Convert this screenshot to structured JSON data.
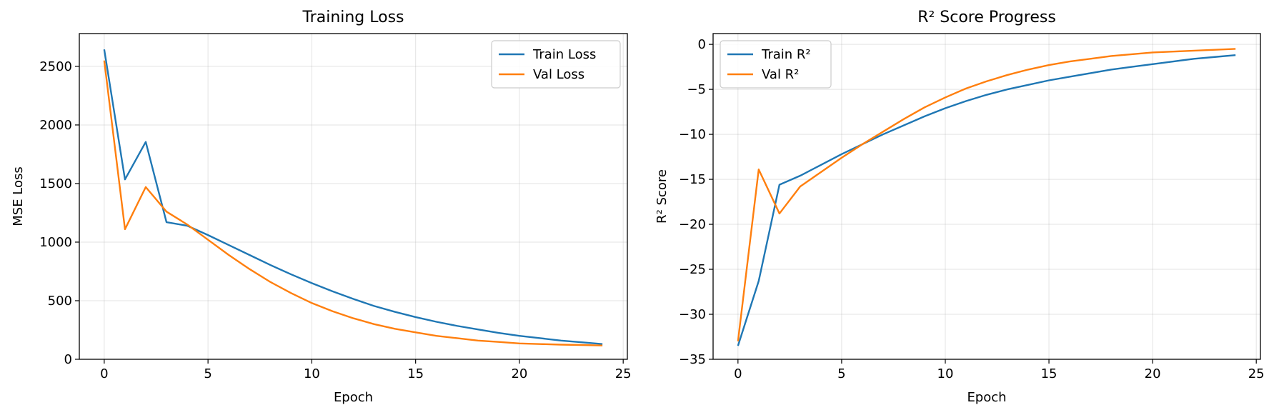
{
  "chart_data": [
    {
      "type": "line",
      "title": "Training Loss",
      "xlabel": "Epoch",
      "ylabel": "MSE Loss",
      "xlim": [
        -1.2,
        25.2
      ],
      "ylim": [
        0,
        2780
      ],
      "xticks": [
        0,
        5,
        10,
        15,
        20,
        25
      ],
      "yticks": [
        0,
        500,
        1000,
        1500,
        2000,
        2500
      ],
      "grid": true,
      "legend_position": "top-right",
      "x": [
        0,
        1,
        2,
        3,
        4,
        5,
        6,
        7,
        8,
        9,
        10,
        11,
        12,
        13,
        14,
        15,
        16,
        17,
        18,
        19,
        20,
        21,
        22,
        23,
        24
      ],
      "series": [
        {
          "name": "Train Loss",
          "color": "#1f77b4",
          "values": [
            2645,
            1535,
            1855,
            1170,
            1140,
            1060,
            975,
            890,
            805,
            725,
            650,
            580,
            515,
            455,
            405,
            360,
            320,
            285,
            255,
            225,
            200,
            180,
            160,
            145,
            130
          ]
        },
        {
          "name": "Val Loss",
          "color": "#ff7f0e",
          "values": [
            2550,
            1110,
            1470,
            1260,
            1150,
            1020,
            890,
            770,
            660,
            565,
            480,
            410,
            350,
            300,
            260,
            230,
            200,
            180,
            160,
            148,
            135,
            130,
            125,
            122,
            118
          ]
        }
      ]
    },
    {
      "type": "line",
      "title": "R² Score Progress",
      "xlabel": "Epoch",
      "ylabel": "R² Score",
      "xlim": [
        -1.2,
        25.2
      ],
      "ylim": [
        -35,
        1.2
      ],
      "xticks": [
        0,
        5,
        10,
        15,
        20,
        25
      ],
      "yticks": [
        -35,
        -30,
        -25,
        -20,
        -15,
        -10,
        -5,
        0
      ],
      "grid": true,
      "legend_position": "top-left",
      "x": [
        0,
        1,
        2,
        3,
        4,
        5,
        6,
        7,
        8,
        9,
        10,
        11,
        12,
        13,
        14,
        15,
        16,
        17,
        18,
        19,
        20,
        21,
        22,
        23,
        24
      ],
      "series": [
        {
          "name": "Train R²",
          "color": "#1f77b4",
          "values": [
            -33.5,
            -26.3,
            -15.6,
            -14.6,
            -13.4,
            -12.2,
            -11.1,
            -10.0,
            -9.0,
            -8.0,
            -7.1,
            -6.3,
            -5.6,
            -5.0,
            -4.5,
            -4.0,
            -3.6,
            -3.2,
            -2.8,
            -2.5,
            -2.2,
            -1.9,
            -1.6,
            -1.4,
            -1.2
          ]
        },
        {
          "name": "Val R²",
          "color": "#ff7f0e",
          "values": [
            -33.0,
            -13.9,
            -18.8,
            -15.8,
            -14.2,
            -12.6,
            -11.1,
            -9.7,
            -8.3,
            -7.0,
            -5.9,
            -4.9,
            -4.1,
            -3.4,
            -2.8,
            -2.3,
            -1.9,
            -1.6,
            -1.3,
            -1.1,
            -0.9,
            -0.8,
            -0.7,
            -0.6,
            -0.5
          ]
        }
      ]
    }
  ]
}
